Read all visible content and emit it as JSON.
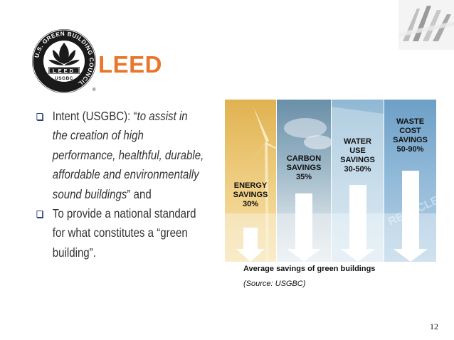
{
  "header": {
    "title": "LEED",
    "logo": {
      "ring_text": "U.S. GREEN BUILDING COUNCIL",
      "banner_text": "LEED",
      "footer_text": "USGBC",
      "mark": "®"
    }
  },
  "bullets": [
    {
      "lines": [
        [
          {
            "t": "Intent (USGBC): “",
            "i": false
          },
          {
            "t": "to assist in",
            "i": true
          }
        ],
        [
          {
            "t": "the creation of high",
            "i": true
          }
        ],
        [
          {
            "t": "performance, healthful, durable,",
            "i": true
          }
        ],
        [
          {
            "t": "affordable and environmentally",
            "i": true
          }
        ],
        [
          {
            "t": "sound buildings",
            "i": true
          },
          {
            "t": "” and",
            "i": false
          }
        ]
      ]
    },
    {
      "lines": [
        [
          {
            "t": "To provide a national standard",
            "i": false
          }
        ],
        [
          {
            "t": "for what constitutes a “green",
            "i": false
          }
        ],
        [
          {
            "t": "building”.",
            "i": false
          }
        ]
      ]
    }
  ],
  "savings": {
    "energy": [
      "ENERGY",
      "SAVINGS",
      "30%"
    ],
    "carbon": [
      "CARBON",
      "SAVINGS",
      "35%"
    ],
    "water": [
      "WATER",
      "USE",
      "SAVINGS",
      "30-50%"
    ],
    "waste": [
      "WASTE",
      "COST",
      "SAVINGS",
      "50-90%"
    ],
    "waste_bg_text": "RECYCLE"
  },
  "caption": "Average savings of green buildings",
  "source": "(Source: USGBC)",
  "page_number": "12",
  "colors": {
    "title": "#e8762b",
    "bullet_box": "#2d3d7c"
  }
}
